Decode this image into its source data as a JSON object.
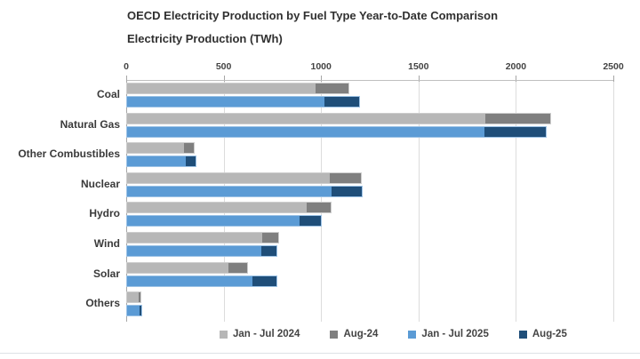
{
  "chart_data": {
    "type": "bar",
    "orientation": "horizontal",
    "stacked": true,
    "title": "OECD Electricity Production by Fuel Type Year-to-Date Comparison",
    "subtitle": "Electricity Production (TWh)",
    "unit": "TWh",
    "categories": [
      "Coal",
      "Natural Gas",
      "Other Combustibles",
      "Nuclear",
      "Hydro",
      "Wind",
      "Solar",
      "Others"
    ],
    "x_axis": {
      "min": 0,
      "max": 2500,
      "tick_values": [
        0,
        500,
        1000,
        1500,
        2000,
        2500
      ],
      "tick_labels": [
        "0",
        "500",
        "1000",
        "1500",
        "2000",
        "2500"
      ],
      "position": "top",
      "grid": true
    },
    "series": [
      {
        "name": "Jan - Jul 2024",
        "color": "#b7b7b7",
        "values": [
          965,
          1840,
          290,
          1040,
          920,
          695,
          520,
          60
        ]
      },
      {
        "name": "Aug-24",
        "color": "#7f7f7f",
        "values": [
          170,
          330,
          50,
          160,
          125,
          80,
          95,
          8
        ]
      },
      {
        "name": "Jan - Jul 2025",
        "color": "#5b9bd5",
        "values": [
          1015,
          1835,
          300,
          1050,
          885,
          690,
          645,
          65
        ]
      },
      {
        "name": "Aug-25",
        "color": "#1f4e79",
        "values": [
          175,
          315,
          50,
          155,
          110,
          75,
          120,
          10
        ]
      }
    ],
    "bar_groups": [
      {
        "label": "2024",
        "series_indexes": [
          0,
          1
        ],
        "border_color": "#cdcdcd"
      },
      {
        "label": "2025",
        "series_indexes": [
          2,
          3
        ],
        "border_color": "#9dc3e6"
      }
    ],
    "legend": {
      "position": "bottom",
      "entries": [
        {
          "label": "Jan - Jul 2024",
          "color": "#b7b7b7"
        },
        {
          "label": "Aug-24",
          "color": "#7f7f7f"
        },
        {
          "label": "Jan - Jul 2025",
          "color": "#5b9bd5"
        },
        {
          "label": "Aug-25",
          "color": "#1f4e79"
        }
      ]
    }
  },
  "colors": {
    "grid": "#dcdcdc",
    "axis": "#a6a6a6",
    "text": "#3a3a3a",
    "background": "#ffffff"
  }
}
